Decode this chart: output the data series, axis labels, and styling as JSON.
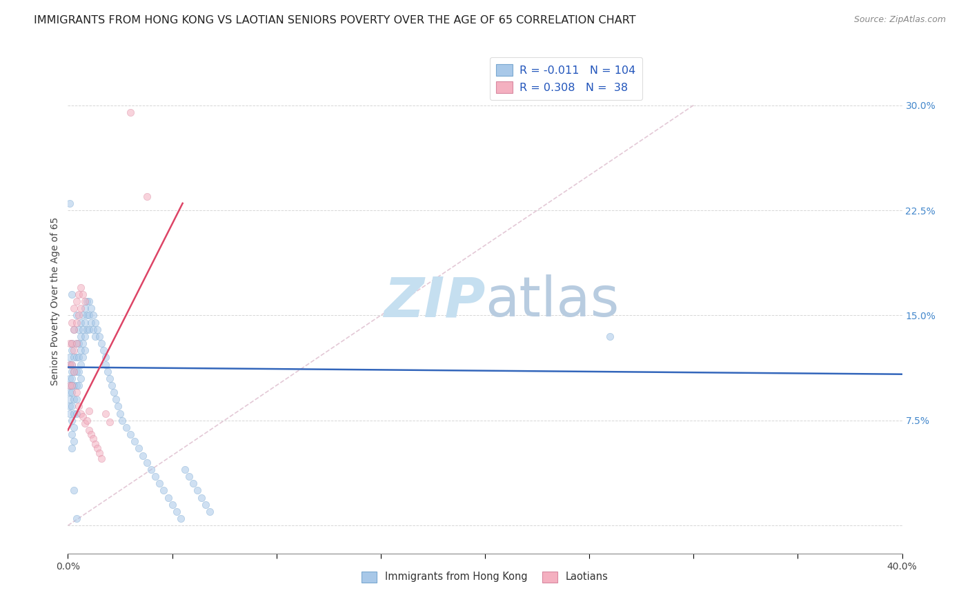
{
  "title": "IMMIGRANTS FROM HONG KONG VS LAOTIAN SENIORS POVERTY OVER THE AGE OF 65 CORRELATION CHART",
  "source": "Source: ZipAtlas.com",
  "ylabel": "Seniors Poverty Over the Age of 65",
  "ytick_labels": [
    "",
    "7.5%",
    "15.0%",
    "22.5%",
    "30.0%"
  ],
  "ytick_values": [
    0.0,
    0.075,
    0.15,
    0.225,
    0.3
  ],
  "xlim": [
    0.0,
    0.4
  ],
  "ylim": [
    -0.02,
    0.34
  ],
  "legend_entries": [
    {
      "label": "Immigrants from Hong Kong",
      "color": "#a8c8e8",
      "edge": "#7aa8d0",
      "R": "-0.011",
      "N": "104"
    },
    {
      "label": "Laotians",
      "color": "#f4b0c0",
      "edge": "#d888a0",
      "R": "0.308",
      "N": "38"
    }
  ],
  "blue_scatter_x": [
    0.001,
    0.001,
    0.001,
    0.001,
    0.001,
    0.001,
    0.001,
    0.001,
    0.002,
    0.002,
    0.002,
    0.002,
    0.002,
    0.002,
    0.002,
    0.002,
    0.002,
    0.002,
    0.002,
    0.003,
    0.003,
    0.003,
    0.003,
    0.003,
    0.003,
    0.003,
    0.003,
    0.004,
    0.004,
    0.004,
    0.004,
    0.004,
    0.004,
    0.004,
    0.005,
    0.005,
    0.005,
    0.005,
    0.005,
    0.006,
    0.006,
    0.006,
    0.006,
    0.006,
    0.007,
    0.007,
    0.007,
    0.007,
    0.008,
    0.008,
    0.008,
    0.008,
    0.009,
    0.009,
    0.009,
    0.01,
    0.01,
    0.01,
    0.011,
    0.011,
    0.012,
    0.012,
    0.013,
    0.013,
    0.014,
    0.015,
    0.016,
    0.017,
    0.018,
    0.018,
    0.019,
    0.02,
    0.021,
    0.022,
    0.023,
    0.024,
    0.025,
    0.026,
    0.028,
    0.03,
    0.032,
    0.034,
    0.036,
    0.038,
    0.04,
    0.042,
    0.044,
    0.046,
    0.048,
    0.05,
    0.052,
    0.054,
    0.056,
    0.058,
    0.06,
    0.062,
    0.064,
    0.066,
    0.068,
    0.26,
    0.001,
    0.002,
    0.003,
    0.004
  ],
  "blue_scatter_y": [
    0.115,
    0.105,
    0.095,
    0.085,
    0.12,
    0.1,
    0.09,
    0.08,
    0.125,
    0.115,
    0.105,
    0.095,
    0.085,
    0.075,
    0.065,
    0.055,
    0.11,
    0.1,
    0.13,
    0.12,
    0.11,
    0.1,
    0.09,
    0.08,
    0.07,
    0.06,
    0.14,
    0.13,
    0.12,
    0.11,
    0.1,
    0.09,
    0.08,
    0.15,
    0.14,
    0.13,
    0.12,
    0.11,
    0.1,
    0.145,
    0.135,
    0.125,
    0.115,
    0.105,
    0.15,
    0.14,
    0.13,
    0.12,
    0.155,
    0.145,
    0.135,
    0.125,
    0.16,
    0.15,
    0.14,
    0.16,
    0.15,
    0.14,
    0.155,
    0.145,
    0.15,
    0.14,
    0.145,
    0.135,
    0.14,
    0.135,
    0.13,
    0.125,
    0.12,
    0.115,
    0.11,
    0.105,
    0.1,
    0.095,
    0.09,
    0.085,
    0.08,
    0.075,
    0.07,
    0.065,
    0.06,
    0.055,
    0.05,
    0.045,
    0.04,
    0.035,
    0.03,
    0.025,
    0.02,
    0.015,
    0.01,
    0.005,
    0.04,
    0.035,
    0.03,
    0.025,
    0.02,
    0.015,
    0.01,
    0.135,
    0.23,
    0.165,
    0.025,
    0.005
  ],
  "pink_scatter_x": [
    0.001,
    0.001,
    0.001,
    0.002,
    0.002,
    0.002,
    0.002,
    0.003,
    0.003,
    0.003,
    0.003,
    0.004,
    0.004,
    0.004,
    0.004,
    0.005,
    0.005,
    0.005,
    0.006,
    0.006,
    0.006,
    0.007,
    0.007,
    0.008,
    0.008,
    0.009,
    0.01,
    0.01,
    0.011,
    0.012,
    0.013,
    0.014,
    0.015,
    0.016,
    0.018,
    0.02,
    0.03,
    0.038
  ],
  "pink_scatter_y": [
    0.13,
    0.115,
    0.1,
    0.145,
    0.13,
    0.115,
    0.1,
    0.155,
    0.14,
    0.125,
    0.11,
    0.16,
    0.145,
    0.13,
    0.095,
    0.165,
    0.15,
    0.085,
    0.17,
    0.155,
    0.08,
    0.165,
    0.078,
    0.16,
    0.073,
    0.075,
    0.082,
    0.068,
    0.065,
    0.062,
    0.058,
    0.055,
    0.052,
    0.048,
    0.08,
    0.074,
    0.295,
    0.235
  ],
  "blue_line_x": [
    0.0,
    0.4
  ],
  "blue_line_y": [
    0.113,
    0.108
  ],
  "pink_line_x": [
    0.0,
    0.055
  ],
  "pink_line_y": [
    0.068,
    0.23
  ],
  "diagonal_line_x": [
    0.0,
    0.3
  ],
  "diagonal_line_y": [
    0.0,
    0.3
  ],
  "watermark_zip": "ZIP",
  "watermark_atlas": "atlas",
  "watermark_color": "#c5dff0",
  "background_color": "#ffffff",
  "grid_color": "#cccccc",
  "scatter_size": 55,
  "scatter_alpha": 0.55,
  "title_fontsize": 11.5,
  "source_fontsize": 9,
  "axis_label_fontsize": 10,
  "tick_fontsize": 10
}
